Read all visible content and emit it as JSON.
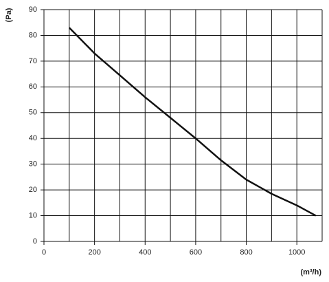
{
  "chart_data": {
    "type": "line",
    "y_label": "(Pa)",
    "x_label": "(m³/h)",
    "x": [
      100,
      200,
      300,
      400,
      500,
      600,
      700,
      800,
      900,
      1000,
      1075
    ],
    "series": [
      {
        "color": "#111111",
        "values": [
          83,
          73,
          64.5,
          56,
          48,
          40,
          31.5,
          24,
          18.5,
          14,
          10
        ]
      }
    ],
    "xlim": [
      0,
      1100
    ],
    "xticks": [
      0,
      200,
      400,
      600,
      800,
      1000
    ],
    "xminorticks": [
      100,
      300,
      500,
      700,
      900,
      1100
    ],
    "ylim": [
      0,
      90
    ],
    "yticks": [
      0,
      10,
      20,
      30,
      40,
      50,
      60,
      70,
      80,
      90
    ],
    "grid": true
  }
}
